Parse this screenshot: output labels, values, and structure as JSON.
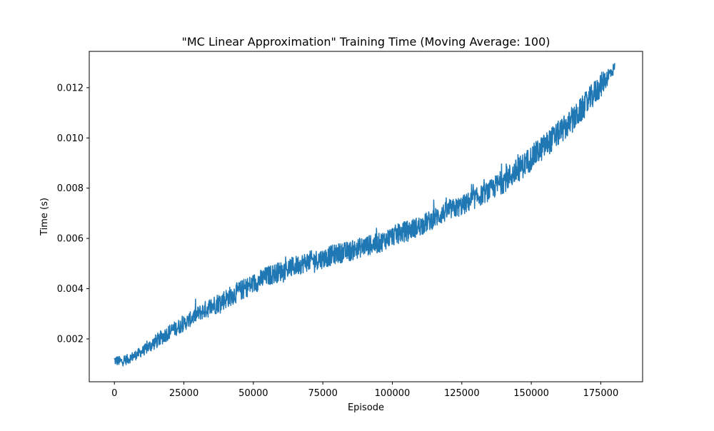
{
  "chart_data": {
    "type": "line",
    "title": "\"MC Linear Approximation\" Training Time (Moving Average: 100)",
    "xlabel": "Episode",
    "ylabel": "Time (s)",
    "xlim": [
      -9050,
      190050
    ],
    "ylim": [
      0.000295,
      0.013445
    ],
    "x_ticks": [
      0,
      25000,
      50000,
      75000,
      100000,
      125000,
      150000,
      175000
    ],
    "x_tick_labels": [
      "0",
      "25000",
      "50000",
      "75000",
      "100000",
      "125000",
      "150000",
      "175000"
    ],
    "y_ticks": [
      0.002,
      0.004,
      0.006,
      0.008,
      0.01,
      0.012
    ],
    "y_tick_labels": [
      "0.002",
      "0.004",
      "0.006",
      "0.008",
      "0.010",
      "0.012"
    ],
    "grid": false,
    "series": [
      {
        "color": "#1f77b4",
        "x": [
          0,
          2500,
          5000,
          10000,
          15000,
          20000,
          25000,
          30000,
          35000,
          40000,
          45000,
          50000,
          55000,
          60000,
          65000,
          70000,
          75000,
          80000,
          85000,
          90000,
          95000,
          100000,
          105000,
          110000,
          115000,
          120000,
          125000,
          130000,
          135000,
          140000,
          145000,
          150000,
          155000,
          160000,
          165000,
          170000,
          175000,
          180000
        ],
        "y": [
          0.00115,
          0.0011,
          0.0012,
          0.0015,
          0.0019,
          0.0023,
          0.0026,
          0.003,
          0.0033,
          0.0036,
          0.0039,
          0.0042,
          0.0045,
          0.0047,
          0.0049,
          0.0051,
          0.0052,
          0.0054,
          0.0055,
          0.0057,
          0.0058,
          0.0061,
          0.0063,
          0.0065,
          0.0068,
          0.0071,
          0.0073,
          0.0076,
          0.0079,
          0.0083,
          0.0087,
          0.0092,
          0.0097,
          0.0102,
          0.0107,
          0.0114,
          0.0121,
          0.0128
        ],
        "noise_amplitude": [
          0.0002,
          0.0002,
          0.0002,
          0.0002,
          0.0003,
          0.0003,
          0.0003,
          0.0003,
          0.0004,
          0.0004,
          0.0004,
          0.0004,
          0.0004,
          0.0004,
          0.0004,
          0.0004,
          0.0004,
          0.0004,
          0.0004,
          0.0004,
          0.0004,
          0.0004,
          0.0004,
          0.0004,
          0.0004,
          0.0004,
          0.0004,
          0.0004,
          0.0004,
          0.0005,
          0.0005,
          0.0005,
          0.0005,
          0.0005,
          0.0005,
          0.0005,
          0.0005,
          0.0002
        ]
      }
    ]
  }
}
